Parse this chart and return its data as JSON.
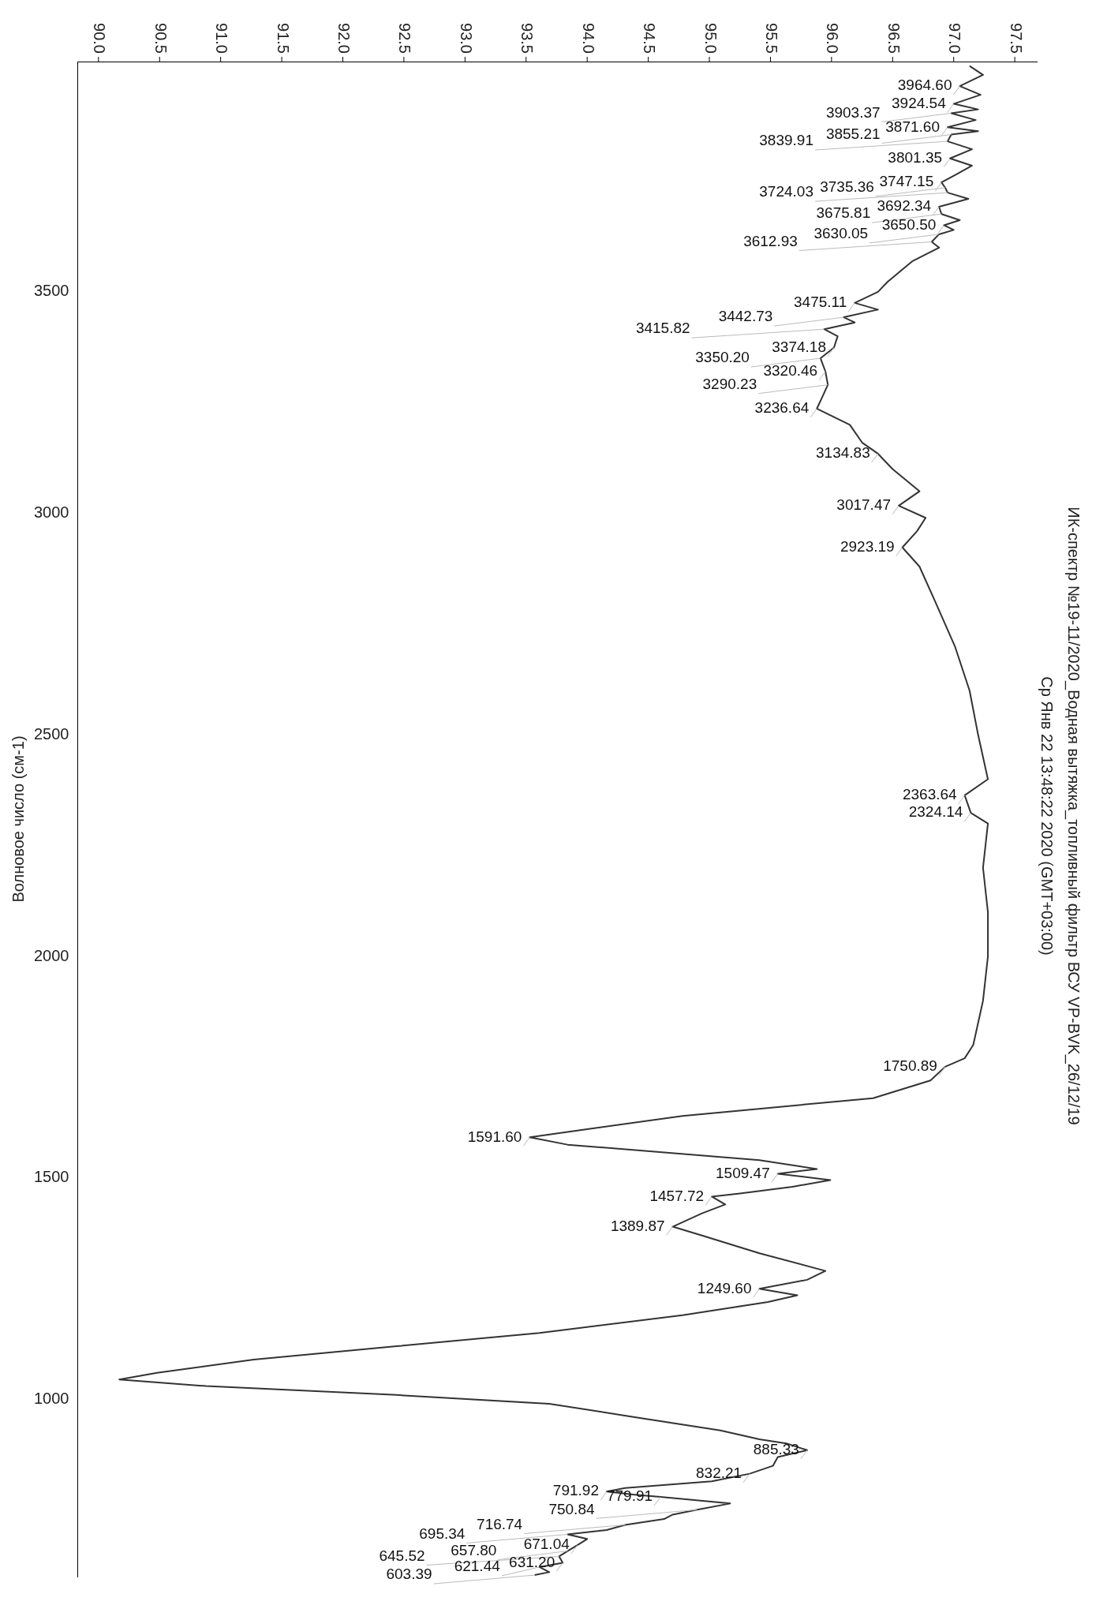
{
  "chart_data": {
    "type": "line",
    "title": "ИК-спектр №19-11/2020_Водная вытяжка_топливный фильтр ВСУ VP-BVK_26/12/19",
    "subtitle": "Ср Янв 22 13:48:22 2020 (GMT+03:00)",
    "ylabel": "Волновое число (см-1)",
    "color": "#333333",
    "orientation": "horizontal",
    "ylim": [
      600,
      4020
    ],
    "yticks": [
      3500,
      3000,
      2500,
      2000,
      1500,
      1000
    ],
    "xlim": [
      89.83,
      97.68
    ],
    "xticks": [
      {
        "value": 90,
        "label": "90.0"
      },
      {
        "value": 90.5,
        "label": "90.5"
      },
      {
        "value": 91,
        "label": "91.0"
      },
      {
        "value": 91.5,
        "label": "91.5"
      },
      {
        "value": 92,
        "label": "92.0"
      },
      {
        "value": 92.5,
        "label": "92.5"
      },
      {
        "value": 93,
        "label": "93.0"
      },
      {
        "value": 93.5,
        "label": "93.5"
      },
      {
        "value": 94,
        "label": "94.0"
      },
      {
        "value": 94.5,
        "label": "94.5"
      },
      {
        "value": 95,
        "label": "95.0"
      },
      {
        "value": 95.5,
        "label": "95.5"
      },
      {
        "value": 96,
        "label": "96.0"
      },
      {
        "value": 96.5,
        "label": "96.5"
      },
      {
        "value": 97,
        "label": "97.0"
      },
      {
        "value": 97.5,
        "label": "97.5"
      }
    ],
    "x": [
      4010,
      3990,
      3964.6,
      3945,
      3924.54,
      3912,
      3903.37,
      3888,
      3871.6,
      3863,
      3855.21,
      3839.91,
      3822,
      3801.35,
      3785,
      3765,
      3747.15,
      3735.36,
      3724.03,
      3710,
      3692.34,
      3675.81,
      3662,
      3650.5,
      3640,
      3630.05,
      3612.93,
      3600,
      3569,
      3523,
      3500,
      3475.11,
      3460,
      3442.73,
      3431,
      3415.82,
      3400,
      3374.18,
      3350.2,
      3320.46,
      3290.23,
      3260,
      3236.64,
      3200,
      3160,
      3134.83,
      3100,
      3050,
      3017.47,
      2990,
      2960,
      2923.19,
      2880,
      2800,
      2700,
      2600,
      2500,
      2400,
      2363.64,
      2324.14,
      2300,
      2200,
      2100,
      2000,
      1900,
      1800,
      1770,
      1750.89,
      1720,
      1680,
      1640,
      1610,
      1591.6,
      1575,
      1540,
      1520,
      1509.47,
      1495,
      1480,
      1465,
      1457.72,
      1440,
      1420,
      1389.87,
      1370,
      1330,
      1290,
      1270,
      1249.6,
      1235,
      1220,
      1190,
      1150,
      1120,
      1090,
      1060,
      1045,
      1030,
      1010,
      990,
      960,
      930,
      910,
      900,
      885.33,
      870,
      850,
      832.21,
      815,
      800,
      791.92,
      785,
      779.91,
      765,
      750.84,
      740,
      730,
      716.74,
      705,
      695.34,
      685,
      671.04,
      657.8,
      645.52,
      631.2,
      621.44,
      610,
      603.39
    ],
    "values": [
      97.13,
      97.24,
      97.05,
      97.22,
      97.0,
      97.2,
      96.98,
      97.18,
      96.95,
      97.2,
      96.98,
      96.95,
      97.15,
      96.97,
      97.15,
      97.02,
      96.9,
      96.93,
      96.95,
      97.12,
      96.88,
      96.9,
      97.05,
      96.92,
      97.0,
      96.88,
      96.82,
      96.88,
      96.66,
      96.46,
      96.38,
      96.19,
      96.38,
      96.1,
      96.19,
      95.94,
      96.05,
      96.02,
      95.91,
      95.95,
      95.97,
      95.92,
      95.88,
      96.15,
      96.25,
      96.38,
      96.5,
      96.72,
      96.55,
      96.77,
      96.7,
      96.58,
      96.72,
      96.85,
      97.01,
      97.13,
      97.2,
      97.28,
      97.09,
      97.14,
      97.28,
      97.24,
      97.28,
      97.28,
      97.24,
      97.16,
      97.09,
      96.93,
      96.81,
      96.34,
      94.78,
      94.0,
      93.53,
      93.84,
      95.41,
      95.88,
      95.56,
      95.99,
      95.68,
      95.25,
      95.02,
      95.13,
      94.94,
      94.7,
      94.94,
      95.41,
      95.95,
      95.8,
      95.41,
      95.72,
      95.48,
      94.78,
      93.61,
      92.44,
      91.27,
      90.48,
      90.17,
      90.88,
      92.44,
      93.69,
      94.39,
      95.09,
      95.41,
      95.64,
      95.8,
      95.56,
      95.52,
      95.33,
      95.02,
      94.31,
      94.16,
      94.39,
      94.6,
      95.17,
      94.9,
      94.7,
      94.63,
      94.31,
      94.16,
      93.84,
      94.0,
      93.92,
      93.84,
      93.77,
      93.8,
      93.61,
      93.69,
      93.57
    ],
    "annotations": [
      {
        "text": "3964.60",
        "x": 97.05,
        "y": 3964.6
      },
      {
        "text": "3924.54",
        "x": 97.0,
        "y": 3924.54
      },
      {
        "text": "3903.37",
        "x": 96.98,
        "y": 3903.37
      },
      {
        "text": "3871.60",
        "x": 96.95,
        "y": 3871.6
      },
      {
        "text": "3855.21",
        "x": 96.98,
        "y": 3855.21
      },
      {
        "text": "3839.91",
        "x": 96.95,
        "y": 3839.91
      },
      {
        "text": "3801.35",
        "x": 96.97,
        "y": 3801.35
      },
      {
        "text": "3747.15",
        "x": 96.9,
        "y": 3747.15
      },
      {
        "text": "3735.36",
        "x": 96.93,
        "y": 3735.36
      },
      {
        "text": "3724.03",
        "x": 96.95,
        "y": 3724.03
      },
      {
        "text": "3692.34",
        "x": 96.88,
        "y": 3692.34
      },
      {
        "text": "3675.81",
        "x": 96.9,
        "y": 3675.81
      },
      {
        "text": "3650.50",
        "x": 96.92,
        "y": 3650.5
      },
      {
        "text": "3630.05",
        "x": 96.88,
        "y": 3630.05
      },
      {
        "text": "3612.93",
        "x": 96.82,
        "y": 3612.93
      },
      {
        "text": "3475.11",
        "x": 96.19,
        "y": 3475.11
      },
      {
        "text": "3442.73",
        "x": 96.1,
        "y": 3442.73
      },
      {
        "text": "3415.82",
        "x": 95.94,
        "y": 3415.82
      },
      {
        "text": "3374.18",
        "x": 96.02,
        "y": 3374.18
      },
      {
        "text": "3350.20",
        "x": 95.91,
        "y": 3350.2
      },
      {
        "text": "3320.46",
        "x": 95.95,
        "y": 3320.46
      },
      {
        "text": "3290.23",
        "x": 95.97,
        "y": 3290.23
      },
      {
        "text": "3236.64",
        "x": 95.88,
        "y": 3236.64
      },
      {
        "text": "3134.83",
        "x": 96.38,
        "y": 3134.83
      },
      {
        "text": "3017.47",
        "x": 96.55,
        "y": 3017.47
      },
      {
        "text": "2923.19",
        "x": 96.58,
        "y": 2923.19
      },
      {
        "text": "2363.64",
        "x": 97.09,
        "y": 2363.64
      },
      {
        "text": "2324.14",
        "x": 97.14,
        "y": 2324.14
      },
      {
        "text": "1750.89",
        "x": 96.93,
        "y": 1750.89
      },
      {
        "text": "1591.60",
        "x": 93.53,
        "y": 1591.6
      },
      {
        "text": "1509.47",
        "x": 95.56,
        "y": 1509.47
      },
      {
        "text": "1457.72",
        "x": 95.02,
        "y": 1457.72
      },
      {
        "text": "1389.87",
        "x": 94.7,
        "y": 1389.87
      },
      {
        "text": "1249.60",
        "x": 95.41,
        "y": 1249.6
      },
      {
        "text": "885.33",
        "x": 95.8,
        "y": 885.33
      },
      {
        "text": "832.21",
        "x": 95.33,
        "y": 832.21
      },
      {
        "text": "791.92",
        "x": 94.16,
        "y": 791.92
      },
      {
        "text": "779.91",
        "x": 94.6,
        "y": 779.91
      },
      {
        "text": "750.84",
        "x": 94.9,
        "y": 750.84
      },
      {
        "text": "716.74",
        "x": 94.31,
        "y": 716.74
      },
      {
        "text": "695.34",
        "x": 93.84,
        "y": 695.34
      },
      {
        "text": "671.04",
        "x": 93.92,
        "y": 671.04
      },
      {
        "text": "657.80",
        "x": 93.84,
        "y": 657.8
      },
      {
        "text": "645.52",
        "x": 93.77,
        "y": 645.52
      },
      {
        "text": "631.20",
        "x": 93.8,
        "y": 631.2
      },
      {
        "text": "621.44",
        "x": 93.61,
        "y": 621.44
      },
      {
        "text": "603.39",
        "x": 93.57,
        "y": 603.39
      }
    ]
  }
}
